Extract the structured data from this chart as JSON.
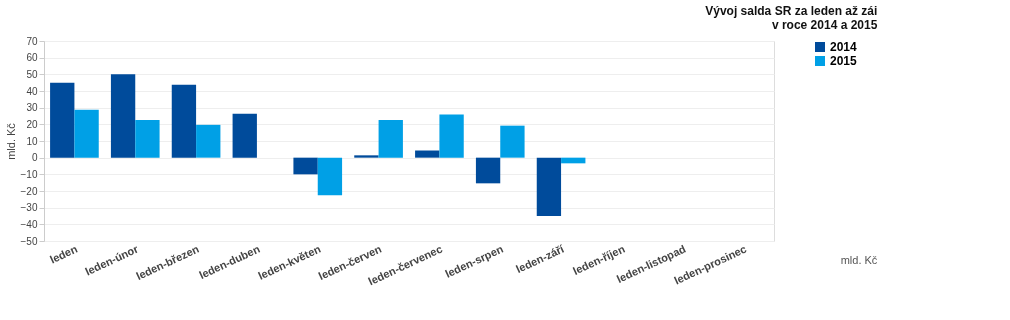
{
  "chart_data": {
    "type": "bar",
    "title": "Vývoj salda SR za leden až zái\nv roce 2014 a 2015",
    "ylabel": "mld. Kč",
    "categories": [
      "leden",
      "leden-únor",
      "leden-březen",
      "leden-duben",
      "leden-květen",
      "leden-červen",
      "leden-červenec",
      "leden-srpen",
      "leden-září",
      "leden-říjen",
      "leden-listopad",
      "leden-prosinec"
    ],
    "series": [
      {
        "name": "2014",
        "color": "#004b9b",
        "values": [
          45,
          50,
          43.7,
          26.4,
          -10,
          1.4,
          4.3,
          -15.4,
          -35,
          null,
          null,
          null
        ]
      },
      {
        "name": "2015",
        "color": "#00a0e6",
        "values": [
          28.8,
          22.6,
          19.7,
          null,
          -22.6,
          22.6,
          25.9,
          19.2,
          -3.4,
          null,
          null,
          null
        ]
      }
    ],
    "ylim": [
      -50,
      70
    ],
    "yticks": [
      -50,
      -40,
      -30,
      -20,
      -10,
      0,
      10,
      20,
      30,
      40,
      50,
      60,
      70
    ],
    "grid": "y",
    "legend": "right",
    "annotations": [
      "mld. Kč"
    ]
  }
}
